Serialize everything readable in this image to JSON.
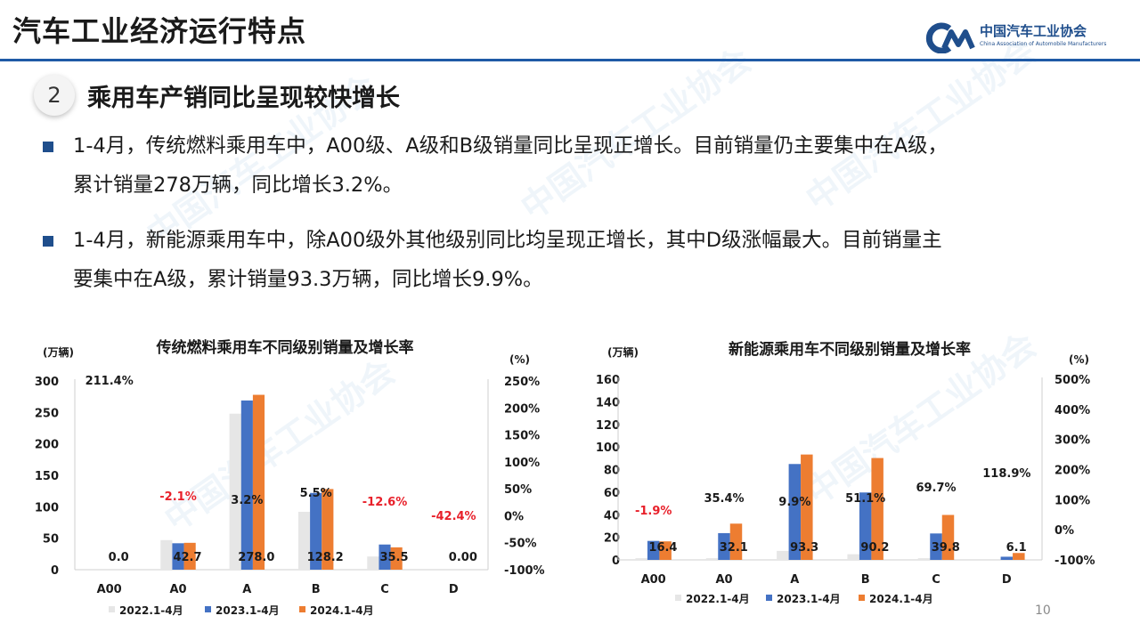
{
  "header": {
    "title": "汽车工业经济运行特点"
  },
  "logo": {
    "cn": "中国汽车工业协会",
    "en": "China Association of Automobile Manufacturers"
  },
  "section": {
    "number": "2",
    "title": "乘用车产销同比呈现较快增长"
  },
  "bullets": [
    {
      "line1": "1-4月，传统燃料乘用车中，A00级、A级和B级销量同比呈现正增长。目前销量仍主要集中在A级，",
      "line2": "累计销量278万辆，同比增长3.2%。"
    },
    {
      "line1": "1-4月，新能源乘用车中，除A00级外其他级别同比均呈现正增长，其中D级涨幅最大。目前销量主",
      "line2": "要集中在A级，累计销量93.3万辆，同比增长9.9%。"
    }
  ],
  "page_number": "10",
  "chart_data": [
    {
      "type": "bar",
      "title": "传统燃料乘用车不同级别销量及增长率",
      "ylabel": "(万辆)",
      "y2label": "(%)",
      "categories": [
        "A00",
        "A0",
        "A",
        "B",
        "C",
        "D"
      ],
      "ylim": [
        0,
        300
      ],
      "yticks": [
        "0",
        "50",
        "100",
        "150",
        "200",
        "250",
        "300"
      ],
      "y2ticks": [
        "-100%",
        "-50%",
        "0%",
        "50%",
        "100%",
        "150%",
        "200%",
        "250%"
      ],
      "series": [
        {
          "name": "2022.1-4月",
          "color": "#e6e6e6",
          "values": [
            0,
            47,
            248,
            92,
            21,
            0
          ]
        },
        {
          "name": "2023.1-4月",
          "color": "#4472c4",
          "values": [
            0,
            42,
            269,
            122,
            40,
            0
          ]
        },
        {
          "name": "2024.1-4月",
          "color": "#ed7d31",
          "values": [
            0,
            42.7,
            278.0,
            128.2,
            35.5,
            0
          ]
        }
      ],
      "value_labels": [
        "0.0",
        "42.7",
        "278.0",
        "128.2",
        "35.5",
        "0.00"
      ],
      "growth_labels": [
        "211.4%",
        "-2.1%",
        "3.2%",
        "5.5%",
        "-12.6%",
        "-42.4%"
      ],
      "growth_colors": [
        "#1a1a1a",
        "#e8202a",
        "#1a1a1a",
        "#1a1a1a",
        "#e8202a",
        "#e8202a"
      ]
    },
    {
      "type": "bar",
      "title": "新能源乘用车不同级别销量及增长率",
      "ylabel": "(万辆)",
      "y2label": "(%)",
      "categories": [
        "A00",
        "A0",
        "A",
        "B",
        "C",
        "D"
      ],
      "ylim": [
        0,
        160
      ],
      "yticks": [
        "0",
        "20",
        "40",
        "60",
        "80",
        "100",
        "120",
        "140",
        "160"
      ],
      "y2ticks": [
        "-100%",
        "0%",
        "100%",
        "200%",
        "300%",
        "400%",
        "500%"
      ],
      "series": [
        {
          "name": "2022.1-4月",
          "color": "#e6e6e6",
          "values": [
            1.5,
            1.5,
            8,
            5,
            1.5,
            0
          ]
        },
        {
          "name": "2023.1-4月",
          "color": "#4472c4",
          "values": [
            16.8,
            23.7,
            84.9,
            59.7,
            23.4,
            2.8
          ]
        },
        {
          "name": "2024.1-4月",
          "color": "#ed7d31",
          "values": [
            16.4,
            32.1,
            93.3,
            90.2,
            39.8,
            6.1
          ]
        }
      ],
      "value_labels": [
        "16.4",
        "32.1",
        "93.3",
        "90.2",
        "39.8",
        "6.1"
      ],
      "growth_labels": [
        "-1.9%",
        "35.4%",
        "9.9%",
        "51.1%",
        "69.7%",
        "118.9%"
      ],
      "growth_colors": [
        "#e8202a",
        "#1a1a1a",
        "#1a1a1a",
        "#1a1a1a",
        "#1a1a1a",
        "#1a1a1a"
      ]
    }
  ]
}
